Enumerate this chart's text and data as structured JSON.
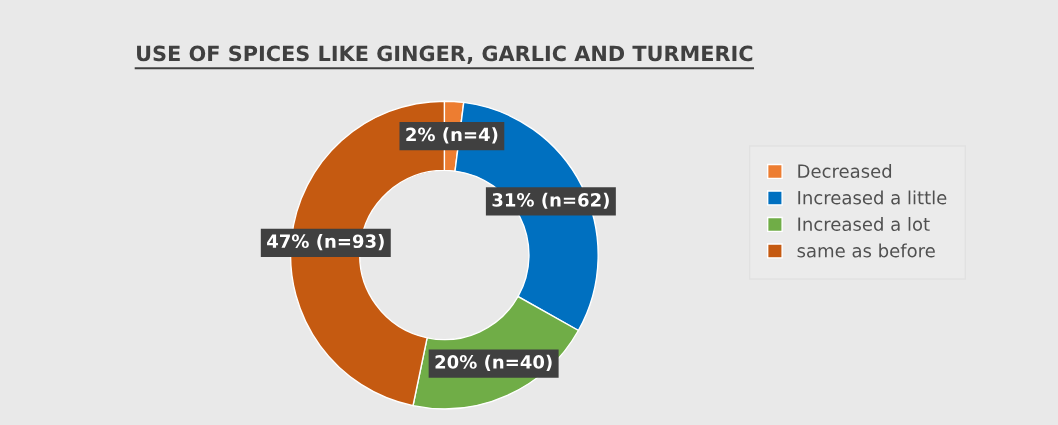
{
  "chart_data": {
    "type": "donut",
    "title": "USE OF SPICES LIKE GINGER, GARLIC AND TURMERIC",
    "categories": [
      "Decreased",
      "Increased a little",
      "Increased a lot",
      "same as before"
    ],
    "values": [
      4,
      62,
      40,
      93
    ],
    "value_labels": [
      "2% (n=4)",
      "31% (n=62)",
      "20% (n=40)",
      "47% (n=93)"
    ],
    "colors": [
      "#ed7d31",
      "#0070c0",
      "#70ad47",
      "#c55a11"
    ],
    "legend": "right"
  }
}
